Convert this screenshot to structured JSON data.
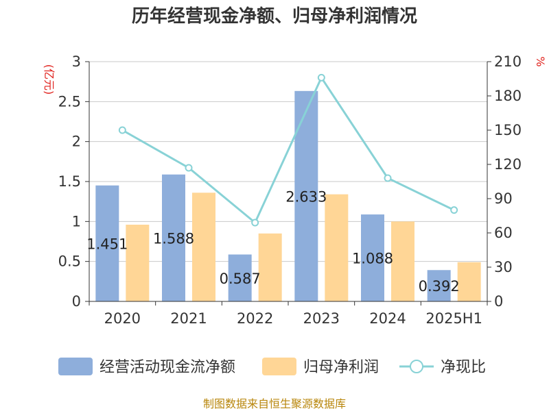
{
  "chart_data": {
    "type": "bar",
    "title": "历年经营现金净额、归母净利润情况",
    "categories": [
      "2020",
      "2021",
      "2022",
      "2023",
      "2024",
      "2025H1"
    ],
    "series": [
      {
        "name": "经营活动现金流净额",
        "type": "bar",
        "axis": "left",
        "color": "#8eaedb",
        "values": [
          1.451,
          1.588,
          0.587,
          2.633,
          1.088,
          0.392
        ],
        "labels": [
          "1.451",
          "1.588",
          "0.587",
          "2.633",
          "1.088",
          "0.392"
        ]
      },
      {
        "name": "归母净利润",
        "type": "bar",
        "axis": "left",
        "color": "#ffd696",
        "values": [
          0.96,
          1.36,
          0.85,
          1.34,
          1.0,
          0.49
        ]
      },
      {
        "name": "净现比",
        "type": "line",
        "axis": "right",
        "color": "#88d2d6",
        "values": [
          150,
          117,
          69,
          196,
          108,
          80
        ]
      }
    ],
    "y_left": {
      "label": "(亿元)",
      "ylim": [
        0,
        3
      ],
      "ticks": [
        "0",
        "0.5",
        "1",
        "1.5",
        "2",
        "2.5",
        "3"
      ],
      "tick_values": [
        0,
        0.5,
        1,
        1.5,
        2,
        2.5,
        3
      ]
    },
    "y_right": {
      "label": "%",
      "ylim": [
        0,
        210
      ],
      "ticks": [
        "0",
        "30",
        "60",
        "90",
        "120",
        "150",
        "180",
        "210"
      ],
      "tick_values": [
        0,
        30,
        60,
        90,
        120,
        150,
        180,
        210
      ]
    },
    "grid": true,
    "legend_position": "bottom",
    "source": "制图数据来自恒生聚源数据库"
  }
}
